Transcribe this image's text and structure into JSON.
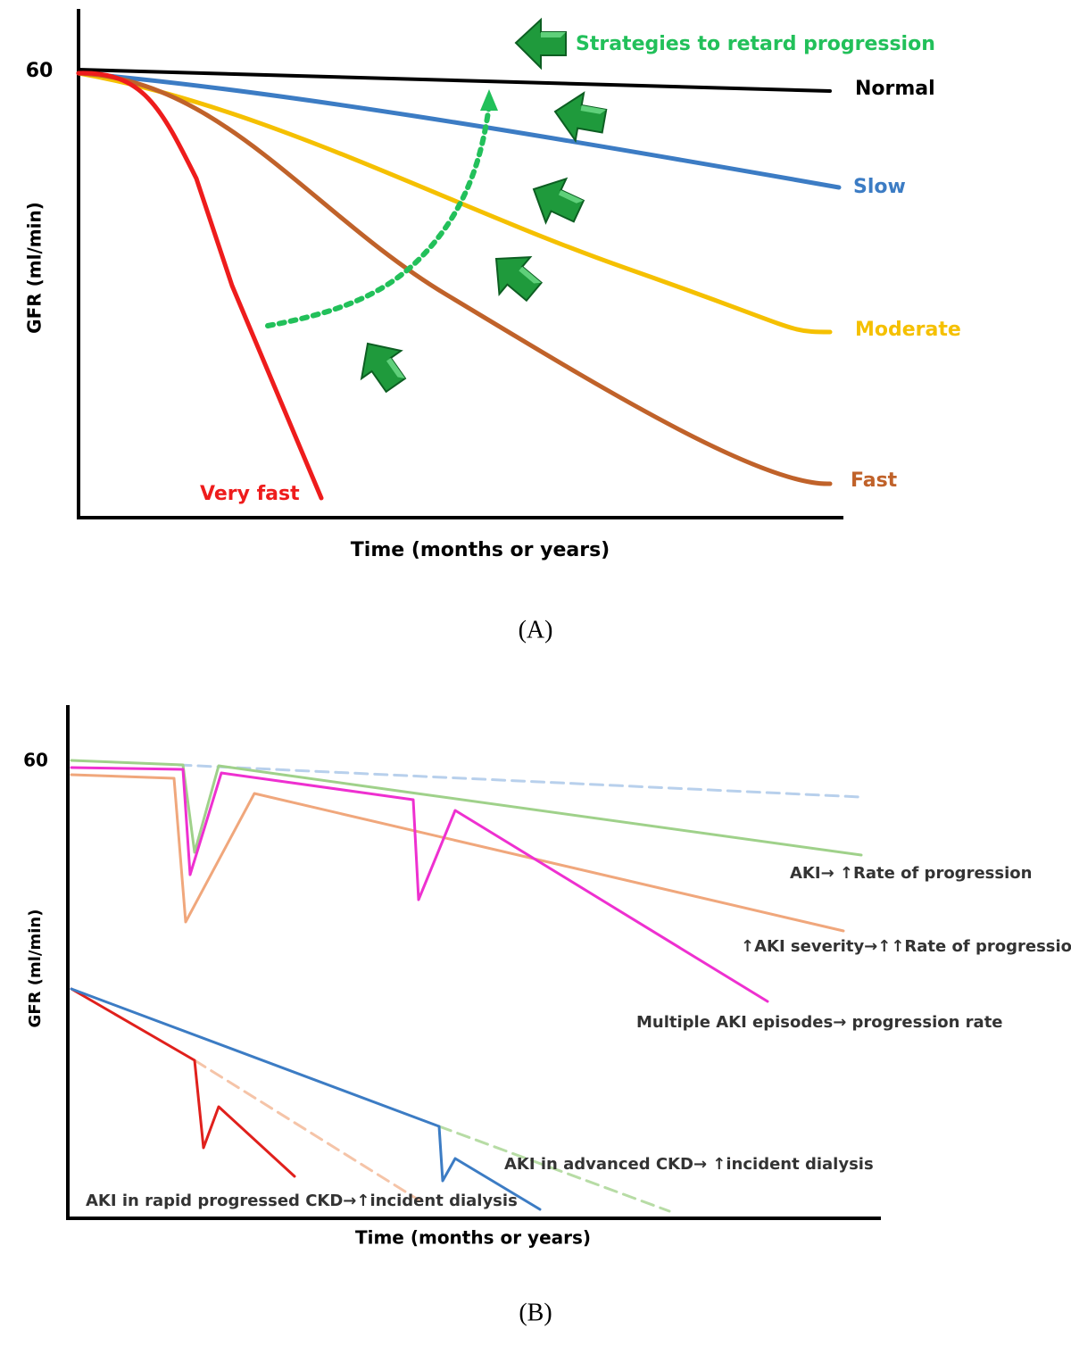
{
  "panel_a": {
    "tick": "60",
    "y_label": "GFR (ml/min)",
    "x_label": "Time (months or years)",
    "annotation": "Strategies to retard progression",
    "curve_labels": [
      "Normal",
      "Slow",
      "Moderate",
      "Fast",
      "Very fast"
    ],
    "caption": "(A)"
  },
  "panel_b": {
    "tick": "60",
    "y_label": "GFR (ml/min)",
    "x_label": "Time (months or years)",
    "curve_labels": [
      "AKI→ ↑Rate of progression",
      "↑AKI severity→↑↑Rate of progression",
      "Multiple AKI episodes→ progression rate",
      "AKI in advanced CKD→ ↑incident dialysis",
      "AKI in rapid progressed CKD→↑incident dialysis"
    ],
    "caption": "(B)"
  }
}
